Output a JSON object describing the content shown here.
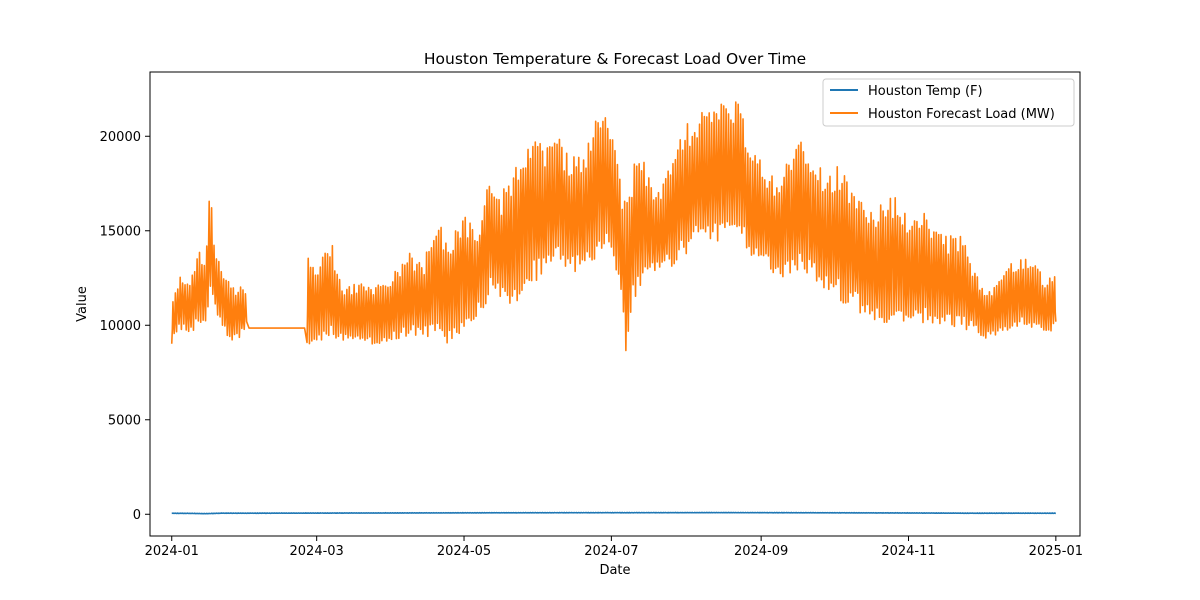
{
  "chart_data": {
    "type": "line",
    "title": "Houston Temperature & Forecast Load Over Time",
    "xlabel": "Date",
    "ylabel": "Value",
    "x_range": [
      "2023-12-23",
      "2025-01-11"
    ],
    "ylim": [
      -1150,
      23400
    ],
    "x_ticks": [
      "2024-01",
      "2024-03",
      "2024-05",
      "2024-07",
      "2024-09",
      "2024-11",
      "2025-01"
    ],
    "y_ticks": [
      0,
      5000,
      10000,
      15000,
      20000
    ],
    "grid": false,
    "legend_position": "top-right",
    "series": [
      {
        "name": "Houston Temp (F)",
        "color": "#1f77b4",
        "note": "hourly temperature; stays near 0 on the shared axis",
        "points": [
          [
            "2024-01-01",
            55
          ],
          [
            "2024-01-08",
            50
          ],
          [
            "2024-01-15",
            35
          ],
          [
            "2024-01-22",
            60
          ],
          [
            "2024-02-01",
            58
          ],
          [
            "2024-02-15",
            62
          ],
          [
            "2024-03-01",
            63
          ],
          [
            "2024-03-15",
            68
          ],
          [
            "2024-04-01",
            70
          ],
          [
            "2024-04-15",
            74
          ],
          [
            "2024-05-01",
            77
          ],
          [
            "2024-05-15",
            80
          ],
          [
            "2024-06-01",
            83
          ],
          [
            "2024-06-15",
            85
          ],
          [
            "2024-07-01",
            86
          ],
          [
            "2024-07-15",
            86
          ],
          [
            "2024-08-01",
            88
          ],
          [
            "2024-08-15",
            90
          ],
          [
            "2024-09-01",
            87
          ],
          [
            "2024-09-15",
            84
          ],
          [
            "2024-10-01",
            80
          ],
          [
            "2024-10-15",
            76
          ],
          [
            "2024-11-01",
            70
          ],
          [
            "2024-11-15",
            64
          ],
          [
            "2024-12-01",
            58
          ],
          [
            "2024-12-15",
            60
          ],
          [
            "2025-01-01",
            57
          ]
        ]
      },
      {
        "name": "Houston Forecast Load (MW)",
        "color": "#ff7f0e",
        "note": "hourly load; min/max envelope per period, with flat segment 2024-02-02 to 2024-02-25",
        "envelope": [
          [
            "2024-01-01",
            8900,
            11200
          ],
          [
            "2024-01-04",
            9400,
            12800
          ],
          [
            "2024-01-08",
            9500,
            12300
          ],
          [
            "2024-01-12",
            9600,
            14000
          ],
          [
            "2024-01-15",
            9800,
            13500
          ],
          [
            "2024-01-17",
            11000,
            18000
          ],
          [
            "2024-01-19",
            10500,
            14000
          ],
          [
            "2024-01-22",
            9500,
            13000
          ],
          [
            "2024-01-26",
            9000,
            12000
          ],
          [
            "2024-01-29",
            9000,
            12300
          ],
          [
            "2024-02-01",
            9800,
            11800
          ]
        ],
        "flat": [
          [
            "2024-02-02",
            9850
          ],
          [
            "2024-02-25",
            9850
          ]
        ],
        "envelope_2": [
          [
            "2024-02-26",
            8600,
            13700
          ],
          [
            "2024-03-01",
            8800,
            13000
          ],
          [
            "2024-03-06",
            9000,
            15000
          ],
          [
            "2024-03-12",
            9000,
            12200
          ],
          [
            "2024-03-20",
            8900,
            12200
          ],
          [
            "2024-03-27",
            8800,
            12300
          ],
          [
            "2024-04-03",
            9000,
            13000
          ],
          [
            "2024-04-08",
            9200,
            14000
          ],
          [
            "2024-04-14",
            9200,
            13300
          ],
          [
            "2024-04-20",
            9000,
            15600
          ],
          [
            "2024-04-25",
            8700,
            14800
          ],
          [
            "2024-05-01",
            9500,
            16200
          ],
          [
            "2024-05-06",
            10000,
            15000
          ],
          [
            "2024-05-12",
            11200,
            18400
          ],
          [
            "2024-05-16",
            11000,
            16800
          ],
          [
            "2024-05-22",
            10600,
            18500
          ],
          [
            "2024-05-28",
            11600,
            20400
          ],
          [
            "2024-06-03",
            12300,
            19500
          ],
          [
            "2024-06-09",
            13000,
            20100
          ],
          [
            "2024-06-14",
            12400,
            18800
          ],
          [
            "2024-06-20",
            12500,
            19300
          ],
          [
            "2024-06-26",
            13400,
            21400
          ],
          [
            "2024-07-01",
            13600,
            20700
          ],
          [
            "2024-07-04",
            12000,
            18500
          ],
          [
            "2024-07-07",
            8100,
            16300
          ],
          [
            "2024-07-10",
            10500,
            18800
          ],
          [
            "2024-07-14",
            11900,
            19000
          ],
          [
            "2024-07-20",
            12600,
            16800
          ],
          [
            "2024-07-26",
            12600,
            19400
          ],
          [
            "2024-07-31",
            13200,
            20500
          ],
          [
            "2024-08-06",
            13900,
            21500
          ],
          [
            "2024-08-12",
            13800,
            21200
          ],
          [
            "2024-08-18",
            14600,
            22300
          ],
          [
            "2024-08-23",
            14900,
            21800
          ],
          [
            "2024-08-28",
            13000,
            19300
          ],
          [
            "2024-09-03",
            12700,
            18400
          ],
          [
            "2024-09-08",
            12300,
            17500
          ],
          [
            "2024-09-13",
            12200,
            19500
          ],
          [
            "2024-09-18",
            12700,
            20000
          ],
          [
            "2024-09-23",
            12000,
            19000
          ],
          [
            "2024-09-28",
            11500,
            18000
          ],
          [
            "2024-10-03",
            11000,
            18600
          ],
          [
            "2024-10-08",
            10500,
            17800
          ],
          [
            "2024-10-13",
            10200,
            17200
          ],
          [
            "2024-10-17",
            10000,
            15800
          ],
          [
            "2024-10-22",
            9700,
            17200
          ],
          [
            "2024-10-27",
            10000,
            17000
          ],
          [
            "2024-11-01",
            9800,
            15600
          ],
          [
            "2024-11-06",
            9800,
            16200
          ],
          [
            "2024-11-12",
            9800,
            15200
          ],
          [
            "2024-11-18",
            9800,
            14700
          ],
          [
            "2024-11-23",
            9500,
            15000
          ],
          [
            "2024-11-28",
            9600,
            13000
          ],
          [
            "2024-12-03",
            9100,
            11800
          ],
          [
            "2024-12-08",
            9400,
            12400
          ],
          [
            "2024-12-13",
            9500,
            13300
          ],
          [
            "2024-12-18",
            9800,
            13500
          ],
          [
            "2024-12-23",
            9600,
            13700
          ],
          [
            "2024-12-28",
            9400,
            12300
          ],
          [
            "2025-01-01",
            9700,
            12900
          ]
        ]
      }
    ]
  }
}
